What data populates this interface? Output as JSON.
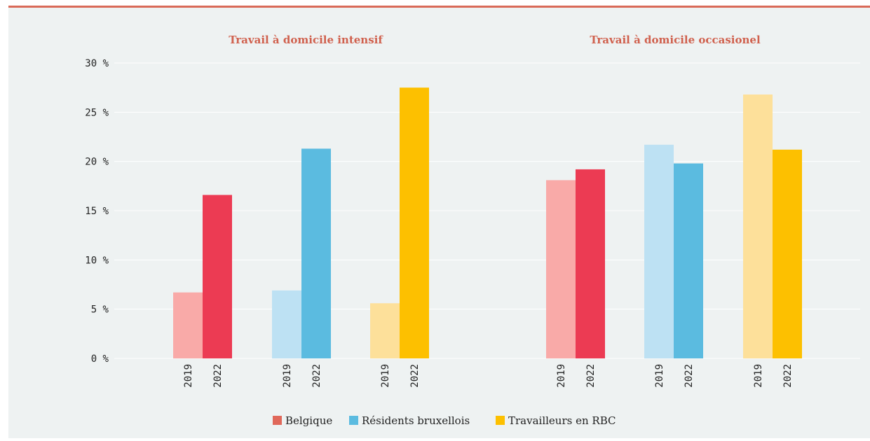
{
  "chart_data": {
    "type": "bar",
    "ylim": [
      0,
      30
    ],
    "yticks": [
      0,
      5,
      10,
      15,
      20,
      25,
      30
    ],
    "ytick_suffix": " %",
    "grid": true,
    "legend_position": "bottom-center",
    "groups": [
      "Belgique",
      "Résidents bruxellois",
      "Travailleurs en RBC"
    ],
    "years": [
      "2019",
      "2022"
    ],
    "colors": {
      "Belgique": {
        "2019": "#f9aaa8",
        "2022": "#ec3b53"
      },
      "Résidents bruxellois": {
        "2019": "#bde1f3",
        "2022": "#5bbbe0"
      },
      "Travailleurs en RBC": {
        "2019": "#fde09a",
        "2022": "#fdc000"
      }
    },
    "panels": [
      {
        "title": "Travail à domicile intensif",
        "values": {
          "Belgique": [
            6.7,
            16.6
          ],
          "Résidents bruxellois": [
            6.9,
            21.3
          ],
          "Travailleurs en RBC": [
            5.6,
            27.5
          ]
        }
      },
      {
        "title": "Travail à domicile occasionel",
        "values": {
          "Belgique": [
            18.1,
            19.2
          ],
          "Résidents bruxellois": [
            21.7,
            19.8
          ],
          "Travailleurs en RBC": [
            26.8,
            21.2
          ]
        }
      }
    ],
    "legend": [
      {
        "label": "Belgique",
        "color": "#e0685a"
      },
      {
        "label": "Résidents bruxellois",
        "color": "#5bbbe0"
      },
      {
        "label": "Travailleurs en RBC",
        "color": "#fdc000"
      }
    ]
  },
  "colors": {
    "background": "#eef2f2",
    "top_rule": "#d96a58",
    "title": "#d0614e",
    "grid": "#ffffff",
    "axis_text": "#222222"
  }
}
